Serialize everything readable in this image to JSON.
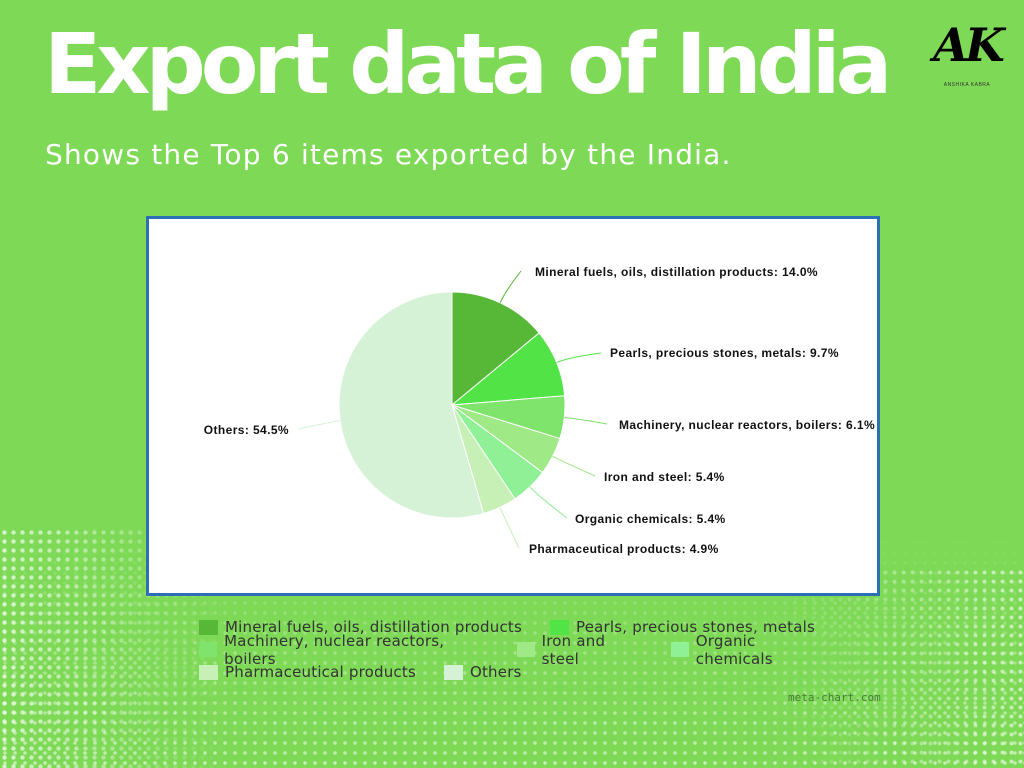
{
  "header": {
    "title": "Export data of India",
    "subtitle": "Shows the Top 6 items exported by the India."
  },
  "logo": {
    "text": "AK",
    "subtext": "ANSHIKA KABRA"
  },
  "credit": "meta-chart.com",
  "colors": {
    "background": "#7ed957",
    "frame_border": "#2c6fb5"
  },
  "chart_data": {
    "type": "pie",
    "title": "",
    "slices": [
      {
        "label": "Mineral fuels, oils, distillation products",
        "value": 14.0,
        "display": "Mineral fuels, oils, distillation products: 14.0%",
        "color": "#56b836"
      },
      {
        "label": "Pearls, precious stones, metals",
        "value": 9.7,
        "display": "Pearls, precious stones, metals: 9.7%",
        "color": "#52e447"
      },
      {
        "label": "Machinery, nuclear reactors, boilers",
        "value": 6.1,
        "display": "Machinery, nuclear reactors, boilers: 6.1%",
        "color": "#7ee46c"
      },
      {
        "label": "Iron and steel",
        "value": 5.4,
        "display": "Iron and steel: 5.4%",
        "color": "#9fe986"
      },
      {
        "label": "Organic chemicals",
        "value": 5.4,
        "display": "Organic chemicals: 5.4%",
        "color": "#8ff095"
      },
      {
        "label": "Pharmaceutical products",
        "value": 4.9,
        "display": "Pharmaceutical products: 4.9%",
        "color": "#c7f0b6"
      },
      {
        "label": "Others",
        "value": 54.5,
        "display": "Others: 54.5%",
        "color": "#d5f2d6"
      }
    ],
    "legend": {
      "position": "bottom",
      "rows": [
        [
          0,
          1
        ],
        [
          2,
          3,
          4
        ],
        [
          5,
          6
        ]
      ]
    }
  }
}
